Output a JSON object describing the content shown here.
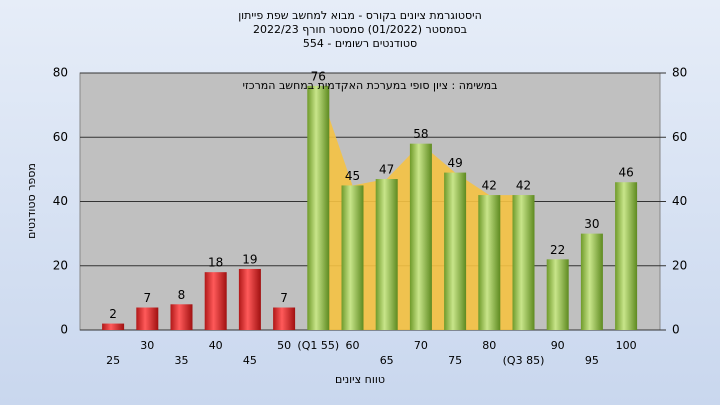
{
  "chart_data": {
    "type": "bar",
    "title": "היסטוגרמת ציונים בקורס - מבוא למחשב שפת פייתון",
    "subtitle": "בסמסטר  (01/2022)  סמסטר חורף 2022/23",
    "subtitle2": "סטודנטים רשומים - 554",
    "annotation": "במשימה : ציון סופי במערכת האקדמית במחשב המרכזי",
    "xlabel": "טווח ציונים",
    "ylabel": "מספר סטודנטים",
    "categories": [
      "25",
      "30",
      "35",
      "40",
      "45",
      "50",
      "(Q1 55)",
      "60",
      "65",
      "70",
      "75",
      "80",
      "(Q3 85)",
      "90",
      "95",
      "100"
    ],
    "values": [
      2,
      7,
      8,
      18,
      19,
      7,
      76,
      45,
      47,
      58,
      49,
      42,
      42,
      22,
      30,
      46
    ],
    "colors": [
      "red",
      "red",
      "red",
      "red",
      "red",
      "red",
      "green",
      "green",
      "green",
      "green",
      "green",
      "green",
      "green",
      "green",
      "green",
      "green"
    ],
    "ylim": [
      0,
      80
    ],
    "yticks": [
      0,
      20,
      40,
      60,
      80
    ],
    "y2lim": [
      0,
      80
    ],
    "y2ticks": [
      0,
      20,
      40,
      60,
      80
    ],
    "grid": true
  }
}
